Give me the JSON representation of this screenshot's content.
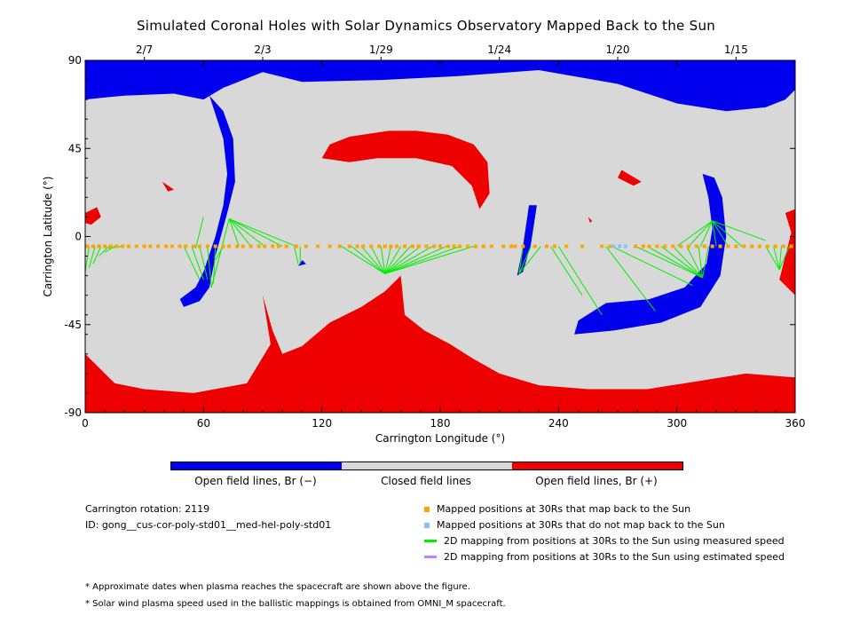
{
  "title": "Simulated Coronal Holes with Solar Dynamics Observatory Mapped Back to the Sun",
  "chart_data": {
    "type": "scatter",
    "xlabel": "Carrington Longitude (°)",
    "ylabel": "Carrington Latitude (°)",
    "xlim": [
      0,
      360
    ],
    "ylim": [
      -90,
      90
    ],
    "xticks": [
      0,
      60,
      120,
      180,
      240,
      300,
      360
    ],
    "yticks": [
      90,
      45,
      0,
      -45,
      -90
    ],
    "top_axis_dates": [
      {
        "label": "2/7",
        "lon": 30
      },
      {
        "label": "2/3",
        "lon": 90
      },
      {
        "label": "1/29",
        "lon": 150
      },
      {
        "label": "1/24",
        "lon": 210
      },
      {
        "label": "1/20",
        "lon": 270
      },
      {
        "label": "1/15",
        "lon": 330
      }
    ],
    "colors": {
      "closed": "#d8d8d8",
      "open_negative": "#0000ee",
      "open_positive": "#ee0000",
      "mapped": "#ffa500",
      "unmapped": "#87bfff",
      "measured_line": "#00ee00",
      "estimated_line": "#c080ff"
    },
    "regions": {
      "negative": [
        [
          [
            0,
            90
          ],
          [
            360,
            90
          ],
          [
            360,
            75
          ],
          [
            355,
            70
          ],
          [
            345,
            66
          ],
          [
            325,
            64
          ],
          [
            300,
            68
          ],
          [
            270,
            78
          ],
          [
            230,
            85
          ],
          [
            190,
            82
          ],
          [
            150,
            80
          ],
          [
            110,
            79
          ],
          [
            90,
            84
          ],
          [
            70,
            76
          ],
          [
            60,
            70
          ],
          [
            45,
            73
          ],
          [
            20,
            72
          ],
          [
            0,
            70
          ]
        ],
        [
          [
            63,
            72
          ],
          [
            70,
            64
          ],
          [
            75,
            50
          ],
          [
            76,
            28
          ],
          [
            72,
            12
          ],
          [
            66,
            -10
          ],
          [
            63,
            -26
          ],
          [
            58,
            -33
          ],
          [
            50,
            -36
          ],
          [
            48,
            -32
          ],
          [
            56,
            -26
          ],
          [
            60,
            -18
          ],
          [
            66,
            0
          ],
          [
            70,
            16
          ],
          [
            72,
            32
          ],
          [
            70,
            50
          ]
        ],
        [
          [
            313,
            32
          ],
          [
            319,
            30
          ],
          [
            323,
            20
          ],
          [
            325,
            0
          ],
          [
            322,
            -20
          ],
          [
            312,
            -36
          ],
          [
            292,
            -44
          ],
          [
            268,
            -48
          ],
          [
            248,
            -50
          ],
          [
            250,
            -43
          ],
          [
            264,
            -34
          ],
          [
            286,
            -32
          ],
          [
            304,
            -26
          ],
          [
            315,
            -14
          ],
          [
            318,
            4
          ],
          [
            316,
            20
          ]
        ],
        [
          [
            225,
            16
          ],
          [
            229,
            16
          ],
          [
            226,
            -4
          ],
          [
            222,
            -18
          ],
          [
            219,
            -20
          ],
          [
            222,
            -5
          ]
        ],
        [
          [
            110,
            -12
          ],
          [
            108,
            -15
          ],
          [
            112,
            -14
          ]
        ]
      ],
      "positive": [
        [
          [
            120,
            40
          ],
          [
            134,
            38
          ],
          [
            148,
            40
          ],
          [
            168,
            40
          ],
          [
            186,
            36
          ],
          [
            196,
            26
          ],
          [
            200,
            14
          ],
          [
            205,
            22
          ],
          [
            204,
            38
          ],
          [
            197,
            47
          ],
          [
            184,
            52
          ],
          [
            168,
            54
          ],
          [
            154,
            54
          ],
          [
            134,
            51
          ],
          [
            124,
            47
          ]
        ],
        [
          [
            0,
            -90
          ],
          [
            360,
            -90
          ],
          [
            360,
            -72
          ],
          [
            335,
            -70
          ],
          [
            310,
            -74
          ],
          [
            285,
            -78
          ],
          [
            255,
            -78
          ],
          [
            230,
            -76
          ],
          [
            210,
            -70
          ],
          [
            196,
            -62
          ],
          [
            185,
            -55
          ],
          [
            172,
            -48
          ],
          [
            162,
            -40
          ],
          [
            160,
            -20
          ],
          [
            152,
            -28
          ],
          [
            140,
            -36
          ],
          [
            124,
            -44
          ],
          [
            110,
            -56
          ],
          [
            100,
            -60
          ],
          [
            95,
            -48
          ],
          [
            90,
            -30
          ],
          [
            94,
            -55
          ],
          [
            82,
            -75
          ],
          [
            55,
            -80
          ],
          [
            30,
            -78
          ],
          [
            15,
            -75
          ],
          [
            2,
            -62
          ],
          [
            0,
            -60
          ]
        ],
        [
          [
            0,
            12
          ],
          [
            6,
            15
          ],
          [
            8,
            10
          ],
          [
            3,
            6
          ],
          [
            0,
            7
          ]
        ],
        [
          [
            355,
            12
          ],
          [
            360,
            14
          ],
          [
            360,
            -30
          ],
          [
            352,
            -22
          ],
          [
            354,
            -14
          ],
          [
            358,
            2
          ]
        ],
        [
          [
            39,
            28
          ],
          [
            45,
            24
          ],
          [
            42,
            23
          ]
        ],
        [
          [
            272,
            34
          ],
          [
            282,
            28
          ],
          [
            278,
            26
          ],
          [
            270,
            30
          ]
        ],
        [
          [
            255,
            10
          ],
          [
            257,
            8
          ],
          [
            256,
            7
          ]
        ]
      ]
    },
    "mapped_positions_lon": [
      1,
      4,
      7,
      10,
      13,
      16,
      19,
      22,
      26,
      30,
      33,
      37,
      41,
      44,
      48,
      51,
      55,
      58,
      62,
      66,
      70,
      73,
      77,
      80,
      84,
      88,
      91,
      95,
      98,
      102,
      107,
      112,
      118,
      124,
      129,
      134,
      138,
      141,
      145,
      149,
      152,
      155,
      158,
      162,
      166,
      169,
      173,
      177,
      180,
      184,
      187,
      190,
      194,
      198,
      202,
      206,
      212,
      216,
      218,
      222,
      228,
      234,
      238,
      244,
      252,
      262,
      266,
      279,
      283,
      286,
      290,
      294,
      298,
      302,
      306,
      310,
      314,
      318,
      322,
      326,
      330,
      334,
      338,
      342,
      346,
      350,
      354,
      358
    ],
    "unmapped_positions_lon": [
      268,
      271,
      274
    ],
    "mapping_lines": [
      [
        2,
        -5,
        0,
        -18
      ],
      [
        5,
        -5,
        2,
        -16
      ],
      [
        8,
        -5,
        4,
        -14
      ],
      [
        12,
        -5,
        7,
        -10
      ],
      [
        15,
        -5,
        10,
        -8
      ],
      [
        19,
        -5,
        12,
        -6
      ],
      [
        62,
        -5,
        64,
        -26
      ],
      [
        58,
        -5,
        62,
        -22
      ],
      [
        54,
        -5,
        60,
        -22
      ],
      [
        50,
        -5,
        58,
        -22
      ],
      [
        66,
        -5,
        65,
        -24
      ],
      [
        70,
        -5,
        66,
        -12
      ],
      [
        60,
        10,
        56,
        -6
      ],
      [
        73,
        9,
        78,
        -5
      ],
      [
        73,
        9,
        84,
        -5
      ],
      [
        73,
        9,
        91,
        -5
      ],
      [
        73,
        9,
        100,
        -5
      ],
      [
        73,
        9,
        107,
        -5
      ],
      [
        73,
        9,
        64,
        -26
      ],
      [
        106,
        -5,
        108,
        -14
      ],
      [
        109,
        -5,
        109,
        -14
      ],
      [
        152,
        -19,
        130,
        -5
      ],
      [
        152,
        -19,
        135,
        -5
      ],
      [
        152,
        -19,
        140,
        -5
      ],
      [
        152,
        -19,
        145,
        -5
      ],
      [
        152,
        -19,
        150,
        -5
      ],
      [
        152,
        -19,
        155,
        -5
      ],
      [
        152,
        -19,
        160,
        -5
      ],
      [
        152,
        -19,
        165,
        -5
      ],
      [
        152,
        -19,
        170,
        -5
      ],
      [
        152,
        -19,
        176,
        -5
      ],
      [
        152,
        -19,
        183,
        -5
      ],
      [
        152,
        -19,
        190,
        -5
      ],
      [
        152,
        -19,
        197,
        -5
      ],
      [
        220,
        -19,
        222,
        -5
      ],
      [
        220,
        -19,
        226,
        -5
      ],
      [
        220,
        -19,
        231,
        -5
      ],
      [
        236,
        -5,
        252,
        -30
      ],
      [
        240,
        -5,
        262,
        -40
      ],
      [
        264,
        -5,
        289,
        -38
      ],
      [
        267,
        -5,
        308,
        -25
      ],
      [
        313,
        -21,
        279,
        -5
      ],
      [
        313,
        -21,
        285,
        -5
      ],
      [
        313,
        -21,
        292,
        -5
      ],
      [
        313,
        -21,
        298,
        -5
      ],
      [
        313,
        -21,
        305,
        -5
      ],
      [
        313,
        -21,
        311,
        -5
      ],
      [
        313,
        -21,
        316,
        -5
      ],
      [
        318,
        8,
        300,
        -5
      ],
      [
        318,
        8,
        306,
        -5
      ],
      [
        318,
        8,
        312,
        -5
      ],
      [
        318,
        8,
        320,
        -5
      ],
      [
        318,
        8,
        326,
        -5
      ],
      [
        318,
        8,
        333,
        -5
      ],
      [
        318,
        8,
        345,
        -2
      ],
      [
        352,
        -17,
        345,
        -5
      ],
      [
        352,
        -17,
        349,
        -5
      ],
      [
        352,
        -17,
        353,
        -5
      ],
      [
        352,
        -17,
        357,
        -5
      ]
    ],
    "colorbar": [
      {
        "label": "Open field lines, Br (−)",
        "color": "#0000ee"
      },
      {
        "label": "Closed field lines",
        "color": "#d8d8d8"
      },
      {
        "label": "Open field lines, Br (+)",
        "color": "#ee0000"
      }
    ],
    "legend": [
      {
        "label": "Mapped positions at 30Rs that map back to the Sun",
        "kind": "square",
        "color": "#ffa500"
      },
      {
        "label": "Mapped positions at 30Rs that do not map back to the Sun",
        "kind": "square",
        "color": "#87bfff"
      },
      {
        "label": "2D mapping from positions at 30Rs to the Sun using measured speed",
        "kind": "line",
        "color": "#00ee00"
      },
      {
        "label": "2D mapping from positions at 30Rs to the Sun using estimated speed",
        "kind": "line",
        "color": "#c080ff"
      }
    ]
  },
  "info": {
    "rotation": "Carrington rotation: 2119",
    "id": "ID: gong__cus-cor-poly-std01__med-hel-poly-std01"
  },
  "footnotes": [
    "* Approximate dates when plasma reaches the spacecraft are shown above the figure.",
    "* Solar wind plasma speed used in the ballistic mappings is obtained from OMNI_M spacecraft."
  ]
}
